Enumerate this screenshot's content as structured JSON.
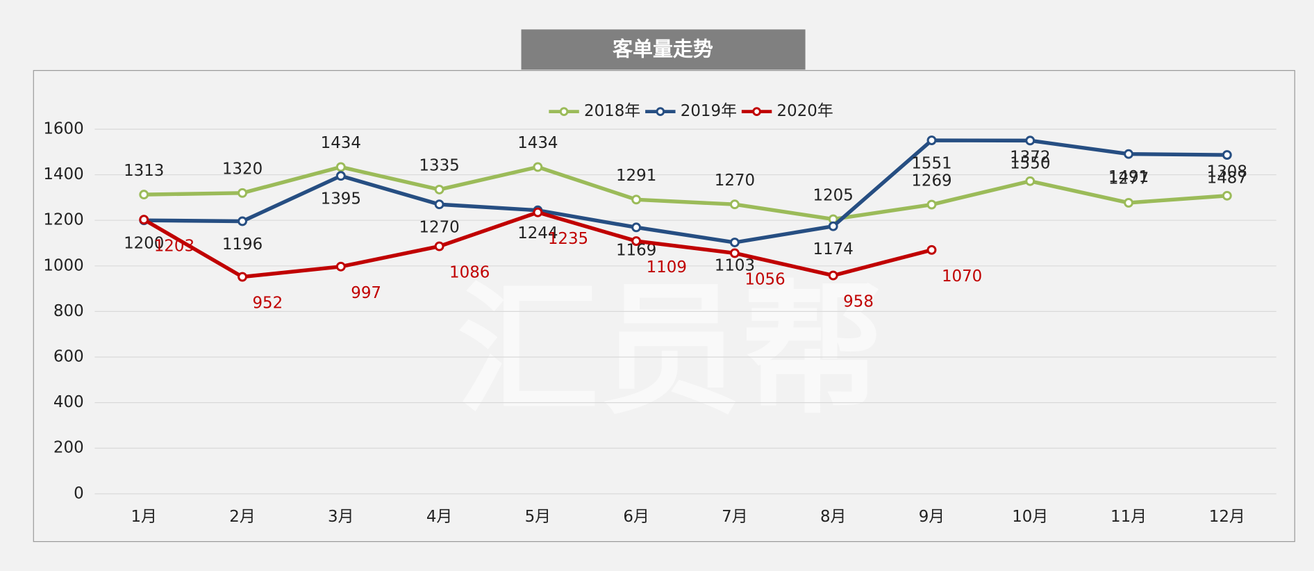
{
  "chart_data": {
    "type": "line",
    "title": "客单量走势",
    "watermark": "汇员帮",
    "categories": [
      "1月",
      "2月",
      "3月",
      "4月",
      "5月",
      "6月",
      "7月",
      "8月",
      "9月",
      "10月",
      "11月",
      "12月"
    ],
    "series": [
      {
        "name": "2018年",
        "color": "#9bbb59",
        "values": [
          1313,
          1320,
          1434,
          1335,
          1434,
          1291,
          1270,
          1205,
          1269,
          1372,
          1277,
          1308
        ]
      },
      {
        "name": "2019年",
        "color": "#264e82",
        "values": [
          1200,
          1196,
          1395,
          1270,
          1244,
          1169,
          1103,
          1174,
          1551,
          1550,
          1491,
          1487
        ]
      },
      {
        "name": "2020年",
        "color": "#c00000",
        "values": [
          1203,
          952,
          997,
          1086,
          1235,
          1109,
          1056,
          958,
          1070,
          null,
          null,
          null
        ]
      }
    ],
    "ylim": [
      0,
      1600
    ],
    "yticks": [
      0,
      200,
      400,
      600,
      800,
      1000,
      1200,
      1400,
      1600
    ],
    "grid": true,
    "legend": "top"
  }
}
